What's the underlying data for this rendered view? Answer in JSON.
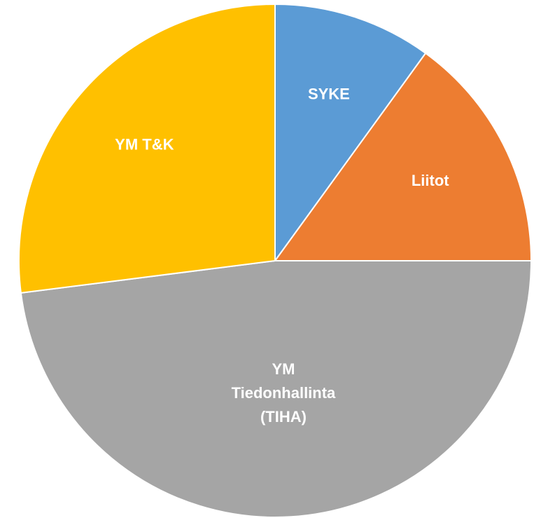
{
  "chart_data": {
    "type": "pie",
    "categories": [
      "SYKE",
      "Liitot",
      "YM\nTiedonhallinta\n(TIHA)",
      "YM T&K"
    ],
    "values": [
      10,
      15,
      48,
      27
    ],
    "colors": [
      "#5b9bd5",
      "#ed7d31",
      "#a5a5a5",
      "#ffc000"
    ]
  }
}
